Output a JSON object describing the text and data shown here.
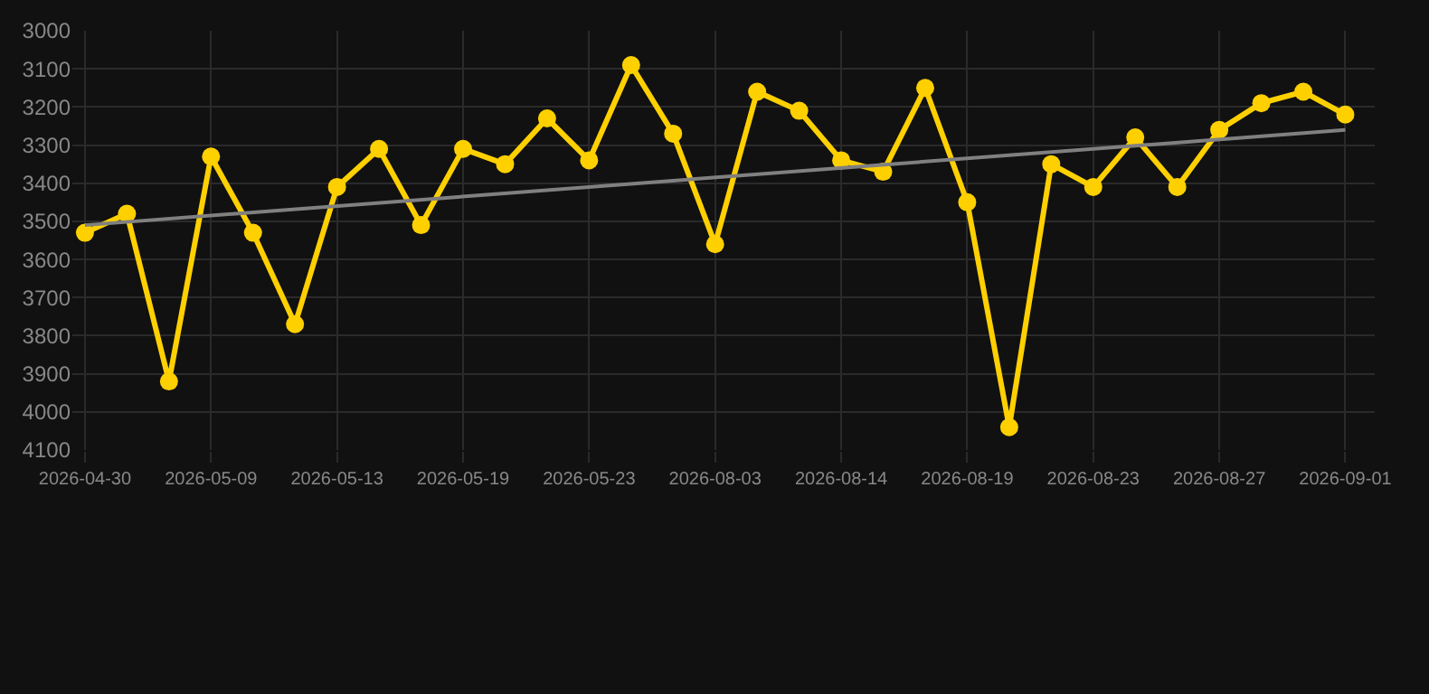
{
  "chart_data": {
    "type": "line",
    "categories": [
      "2026-04-30",
      null,
      null,
      "2026-05-09",
      null,
      null,
      "2026-05-13",
      null,
      null,
      "2026-05-19",
      null,
      null,
      "2026-05-23",
      null,
      null,
      "2026-08-03",
      null,
      null,
      "2026-08-14",
      null,
      null,
      "2026-08-19",
      null,
      null,
      "2026-08-23",
      null,
      null,
      "2026-08-27",
      null,
      null,
      "2026-09-01"
    ],
    "series": [
      {
        "color": "#ffd000",
        "marker": "circle",
        "values": [
          3530,
          3480,
          3920,
          3330,
          3530,
          3770,
          3410,
          3310,
          3510,
          3310,
          3350,
          3230,
          3340,
          3090,
          3270,
          3560,
          3160,
          3210,
          3340,
          3370,
          3150,
          3450,
          4040,
          3350,
          3410,
          3280,
          3410,
          3260,
          3190,
          3160,
          3220
        ]
      },
      {
        "color": "#808080",
        "marker": "none",
        "values": [
          3510,
          null,
          null,
          null,
          null,
          null,
          null,
          null,
          null,
          null,
          null,
          null,
          null,
          null,
          null,
          null,
          null,
          null,
          null,
          null,
          null,
          null,
          null,
          null,
          null,
          null,
          null,
          null,
          null,
          null,
          3260
        ]
      }
    ],
    "ylim": [
      4100,
      3000
    ],
    "yticks": [
      3000,
      3100,
      3200,
      3300,
      3400,
      3500,
      3600,
      3700,
      3800,
      3900,
      4000,
      4100
    ],
    "grid": true
  }
}
